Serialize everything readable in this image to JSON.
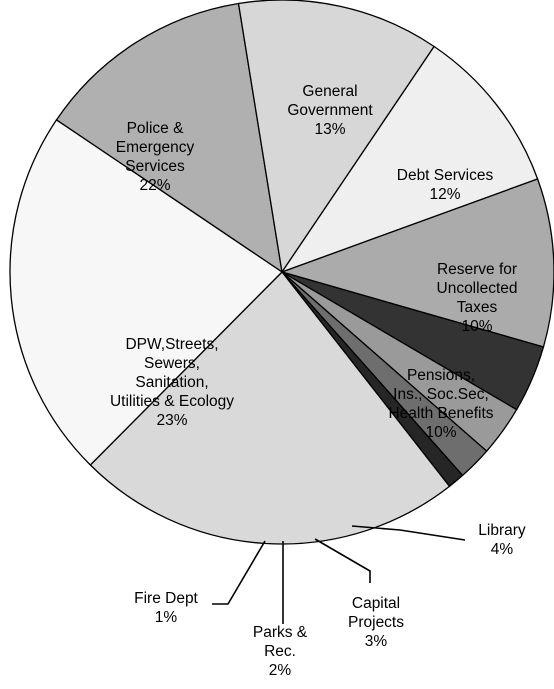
{
  "chart_data": {
    "type": "pie",
    "slices": [
      {
        "label": [
          "General",
          "Government"
        ],
        "value_label": "13%",
        "value": 13,
        "color": "#b0b0b0"
      },
      {
        "label": [
          "Debt Services"
        ],
        "value_label": "12%",
        "value": 12,
        "color": "#d7d7d7"
      },
      {
        "label": [
          "Reserve for",
          "Uncollected",
          "Taxes"
        ],
        "value_label": "10%",
        "value": 10,
        "color": "#efefef"
      },
      {
        "label": [
          "Pensions,",
          "Ins., Soc.Sec,",
          "Health Benefits"
        ],
        "value_label": "10%",
        "value": 10,
        "color": "#ababab"
      },
      {
        "label": [
          "Library"
        ],
        "value_label": "4%",
        "value": 4,
        "color": "#333333"
      },
      {
        "label": [
          "Capital",
          "Projects"
        ],
        "value_label": "3%",
        "value": 3,
        "color": "#9a9a9a"
      },
      {
        "label": [
          "Parks &",
          "Rec."
        ],
        "value_label": "2%",
        "value": 2,
        "color": "#6e6e6e"
      },
      {
        "label": [
          "Fire Dept"
        ],
        "value_label": "1%",
        "value": 1,
        "color": "#262626"
      },
      {
        "label": [
          "DPW,Streets,",
          "Sewers,",
          "Sanitation,",
          "Utilities & Ecology"
        ],
        "value_label": "23%",
        "value": 23,
        "color": "#d9d9d9"
      },
      {
        "label": [
          "Police &",
          "Emergency",
          "Services"
        ],
        "value_label": "22%",
        "value": 22,
        "color": "#f7f7f7"
      }
    ]
  }
}
